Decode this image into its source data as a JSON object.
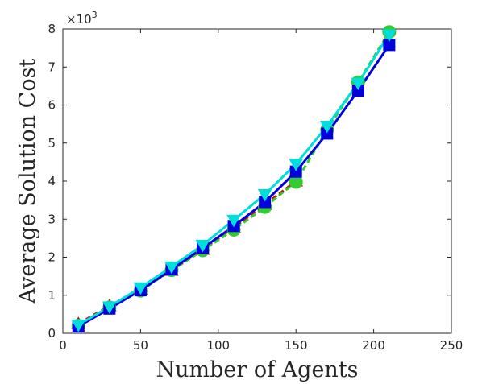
{
  "chart_data": {
    "type": "line",
    "title": "",
    "xlabel": "Number of Agents",
    "ylabel": "Average Solution Cost",
    "xlim": [
      0,
      250
    ],
    "ylim": [
      0,
      8
    ],
    "xticks": [
      0,
      50,
      100,
      150,
      200,
      250
    ],
    "yticks": [
      0,
      1,
      2,
      3,
      4,
      5,
      6,
      7,
      8
    ],
    "y_multiplier": {
      "base": "×10",
      "exponent": "3"
    },
    "grid": false,
    "series": [
      {
        "color": "#dd0000",
        "marker": "triangle-up",
        "dashed": true,
        "x": [
          10,
          30,
          50,
          70,
          90,
          110,
          130,
          150
        ],
        "y": [
          0.25,
          0.72,
          1.15,
          1.65,
          2.2,
          2.78,
          3.38,
          4.0
        ]
      },
      {
        "color": "#33cc33",
        "marker": "circle",
        "dashed": true,
        "x": [
          10,
          30,
          50,
          70,
          90,
          110,
          130,
          150,
          170,
          190,
          210
        ],
        "y": [
          0.2,
          0.68,
          1.12,
          1.66,
          2.18,
          2.72,
          3.32,
          3.98,
          5.35,
          6.6,
          7.92
        ]
      },
      {
        "color": "#0000dd",
        "marker": "square",
        "dashed": false,
        "x": [
          10,
          30,
          50,
          70,
          90,
          110,
          130,
          150,
          170,
          190,
          210
        ],
        "y": [
          0.18,
          0.65,
          1.13,
          1.68,
          2.24,
          2.82,
          3.45,
          4.25,
          5.25,
          6.38,
          7.58
        ]
      },
      {
        "color": "#00dddd",
        "marker": "triangle-down",
        "dashed": false,
        "x": [
          10,
          30,
          50,
          70,
          90,
          110,
          130,
          150,
          170,
          190,
          210
        ],
        "y": [
          0.22,
          0.7,
          1.2,
          1.75,
          2.32,
          2.98,
          3.65,
          4.45,
          5.45,
          6.58,
          7.85
        ]
      }
    ]
  }
}
